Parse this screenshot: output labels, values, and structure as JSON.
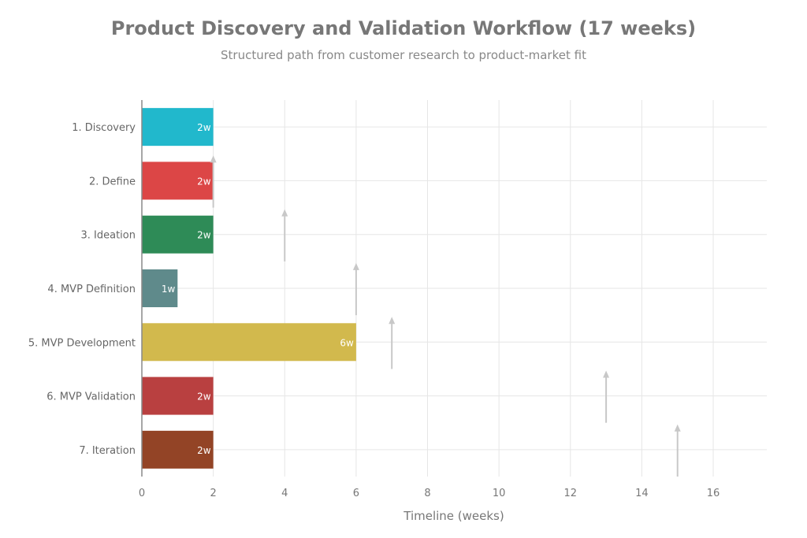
{
  "chart_data": {
    "type": "bar",
    "orientation": "horizontal",
    "title": "Product Discovery and Validation Workflow (17 weeks)",
    "subtitle": "Structured path from customer research to product-market fit",
    "xlabel": "Timeline (weeks)",
    "ylabel": "",
    "xlim": [
      0,
      17.5
    ],
    "xticks": [
      0,
      2,
      4,
      6,
      8,
      10,
      12,
      14,
      16
    ],
    "grid": true,
    "categories": [
      "1. Discovery",
      "2. Define",
      "3. Ideation",
      "4. MVP Definition",
      "5. MVP Development",
      "6. MVP Validation",
      "7. Iteration"
    ],
    "values": [
      2,
      2,
      2,
      1,
      6,
      2,
      2
    ],
    "labels": [
      "2w",
      "2w",
      "2w",
      "1w",
      "6w",
      "2w",
      "2w"
    ],
    "colors": [
      "#21b8cc",
      "#dc4646",
      "#2e8b57",
      "#5f8a8b",
      "#d2b94d",
      "#b94040",
      "#934426"
    ],
    "arrows": [
      {
        "x": 2,
        "from_row": 1,
        "to_row": 0
      },
      {
        "x": 4,
        "from_row": 2,
        "to_row": 1
      },
      {
        "x": 6,
        "from_row": 3,
        "to_row": 2
      },
      {
        "x": 7,
        "from_row": 4,
        "to_row": 3
      },
      {
        "x": 13,
        "from_row": 5,
        "to_row": 4
      },
      {
        "x": 15,
        "from_row": 6,
        "to_row": 5
      }
    ],
    "arrow_color": "#c8c8c8"
  }
}
